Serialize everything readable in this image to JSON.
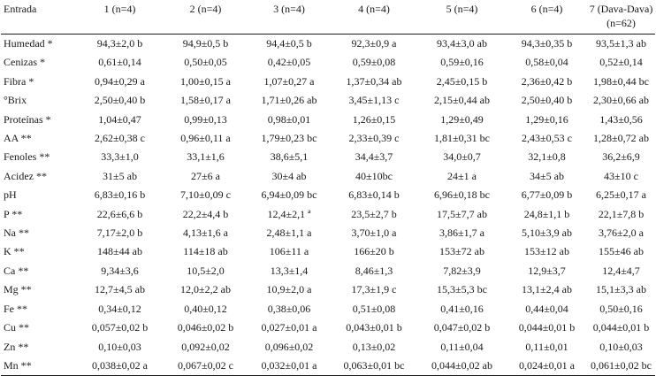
{
  "table": {
    "headers": [
      "Entrada",
      "1 (n=4)",
      "2 (n=4)",
      "3 (n=4)",
      "4 (n=4)",
      "5 (n=4)",
      "6 (n=4)",
      "7 (Dava-Dava)\n(n=62)"
    ],
    "rows": [
      [
        "Humedad *",
        "94,3±2,0 b",
        "94,9±0,5 b",
        "94,4±0,5 b",
        "92,3±0,9 a",
        "93,4±3,0 ab",
        "94,3±0,35 b",
        "93,5±1,3 ab"
      ],
      [
        "Cenizas *",
        "0,61±0,14",
        "0,50±0,05",
        "0,42±0,05",
        "0,59±0,08",
        "0,59±0,16",
        "0,58±0,04",
        "0,52±0,14"
      ],
      [
        "Fibra *",
        "0,94±0,29 a",
        "1,00±0,15 a",
        "1,07±0,27 a",
        "1,37±0,34 ab",
        "2,45±0,15 b",
        "2,36±0,42 b",
        "1,98±0,44 bc"
      ],
      [
        "°Brix",
        "2,50±0,40 b",
        "1,58±0,17 a",
        "1,71±0,26 ab",
        "3,45±1,13 c",
        "2,15±0,44 ab",
        "2,50±0,40 b",
        "2,30±0,66 ab"
      ],
      [
        "Proteínas *",
        "1,04±0,47",
        "0,99±0,13",
        "0,98±0,01",
        "1,26±0,15",
        "1,29±0,49",
        "1,29±0,16",
        "1,43±0,56"
      ],
      [
        "AA **",
        "2,62±0,38 c",
        "0,96±0,11 a",
        "1,79±0,23 bc",
        "2,33±0,39 c",
        "1,81±0,31 bc",
        "2,43±0,53 c",
        "1,28±0,72 ab"
      ],
      [
        "Fenoles **",
        "33,3±1,0",
        "33,1±1,6",
        "38,6±5,1",
        "34,4±3,7",
        "34,0±0,7",
        "32,1±0,8",
        "36,2±6,9"
      ],
      [
        "Acidez **",
        "31±5 ab",
        "27±6 a",
        "30±4 ab",
        "40±10bc",
        "24±1 a",
        "34±5 ab",
        "43±10 c"
      ],
      [
        "pH",
        "6,83±0,16 b",
        "7,10±0,09 c",
        "6,94±0,09 bc",
        "6,83±0,14 b",
        "6,96±0,18 bc",
        "6,77±0,09 b",
        "6,25±0,17 a"
      ],
      [
        "P **",
        "22,6±6,6 b",
        "22,2±4,4 b",
        "12,4±2,1 ª",
        "23,5±2,7 b",
        "17,5±7,7 ab",
        "24,8±1,1 b",
        "22,1±7,8 b"
      ],
      [
        "Na **",
        "7,17±2,0 b",
        "4,13±1,6 a",
        "2,48±1,1 a",
        "3,70±1,0 a",
        "3,86±1,7 a",
        "5,10±3,9 ab",
        "3,76±2,0 a"
      ],
      [
        "K **",
        "148±44 ab",
        "114±18 ab",
        "106±11 a",
        "166±20 b",
        "153±72 ab",
        "153±12 ab",
        "155±46 ab"
      ],
      [
        "Ca **",
        "9,34±3,6",
        "10,5±2,0",
        "13,3±1,4",
        "8,46±1,3",
        "7,82±3,9",
        "12,9±3,7",
        "12,4±4,7"
      ],
      [
        "Mg **",
        "12,7±4,5 ab",
        "12,0±2,2 ab",
        "10,9±2,0 a",
        "17,3±1,9 c",
        "15,3±5,3 bc",
        "13,1±2,4 ab",
        "15,1±3,3 ab"
      ],
      [
        "Fe **",
        "0,34±0,12",
        "0,40±0,12",
        "0,38±0,06",
        "0,51±0,08",
        "0,41±0,16",
        "0,44±0,04",
        "0,50±0,16"
      ],
      [
        "Cu **",
        "0,057±0,02 b",
        "0,046±0,02 b",
        "0,027±0,01 a",
        "0,043±0,01 b",
        "0,047±0,02 b",
        "0,044±0,01 b",
        "0,044±0,01 b"
      ],
      [
        "Zn **",
        "0,10±0,03",
        "0,092±0,02",
        "0,096±0,02",
        "0,13±0,02",
        "0,11±0,04",
        "0,11±0,01",
        "0,10±0,03"
      ],
      [
        "Mn **",
        "0,038±0,02 a",
        "0,067±0,02 c",
        "0,032±0,01 a",
        "0,063±0,01 bc",
        "0,044±0,02 ab",
        "0,024±0,01 a",
        "0,061±0,02 bc"
      ]
    ]
  }
}
